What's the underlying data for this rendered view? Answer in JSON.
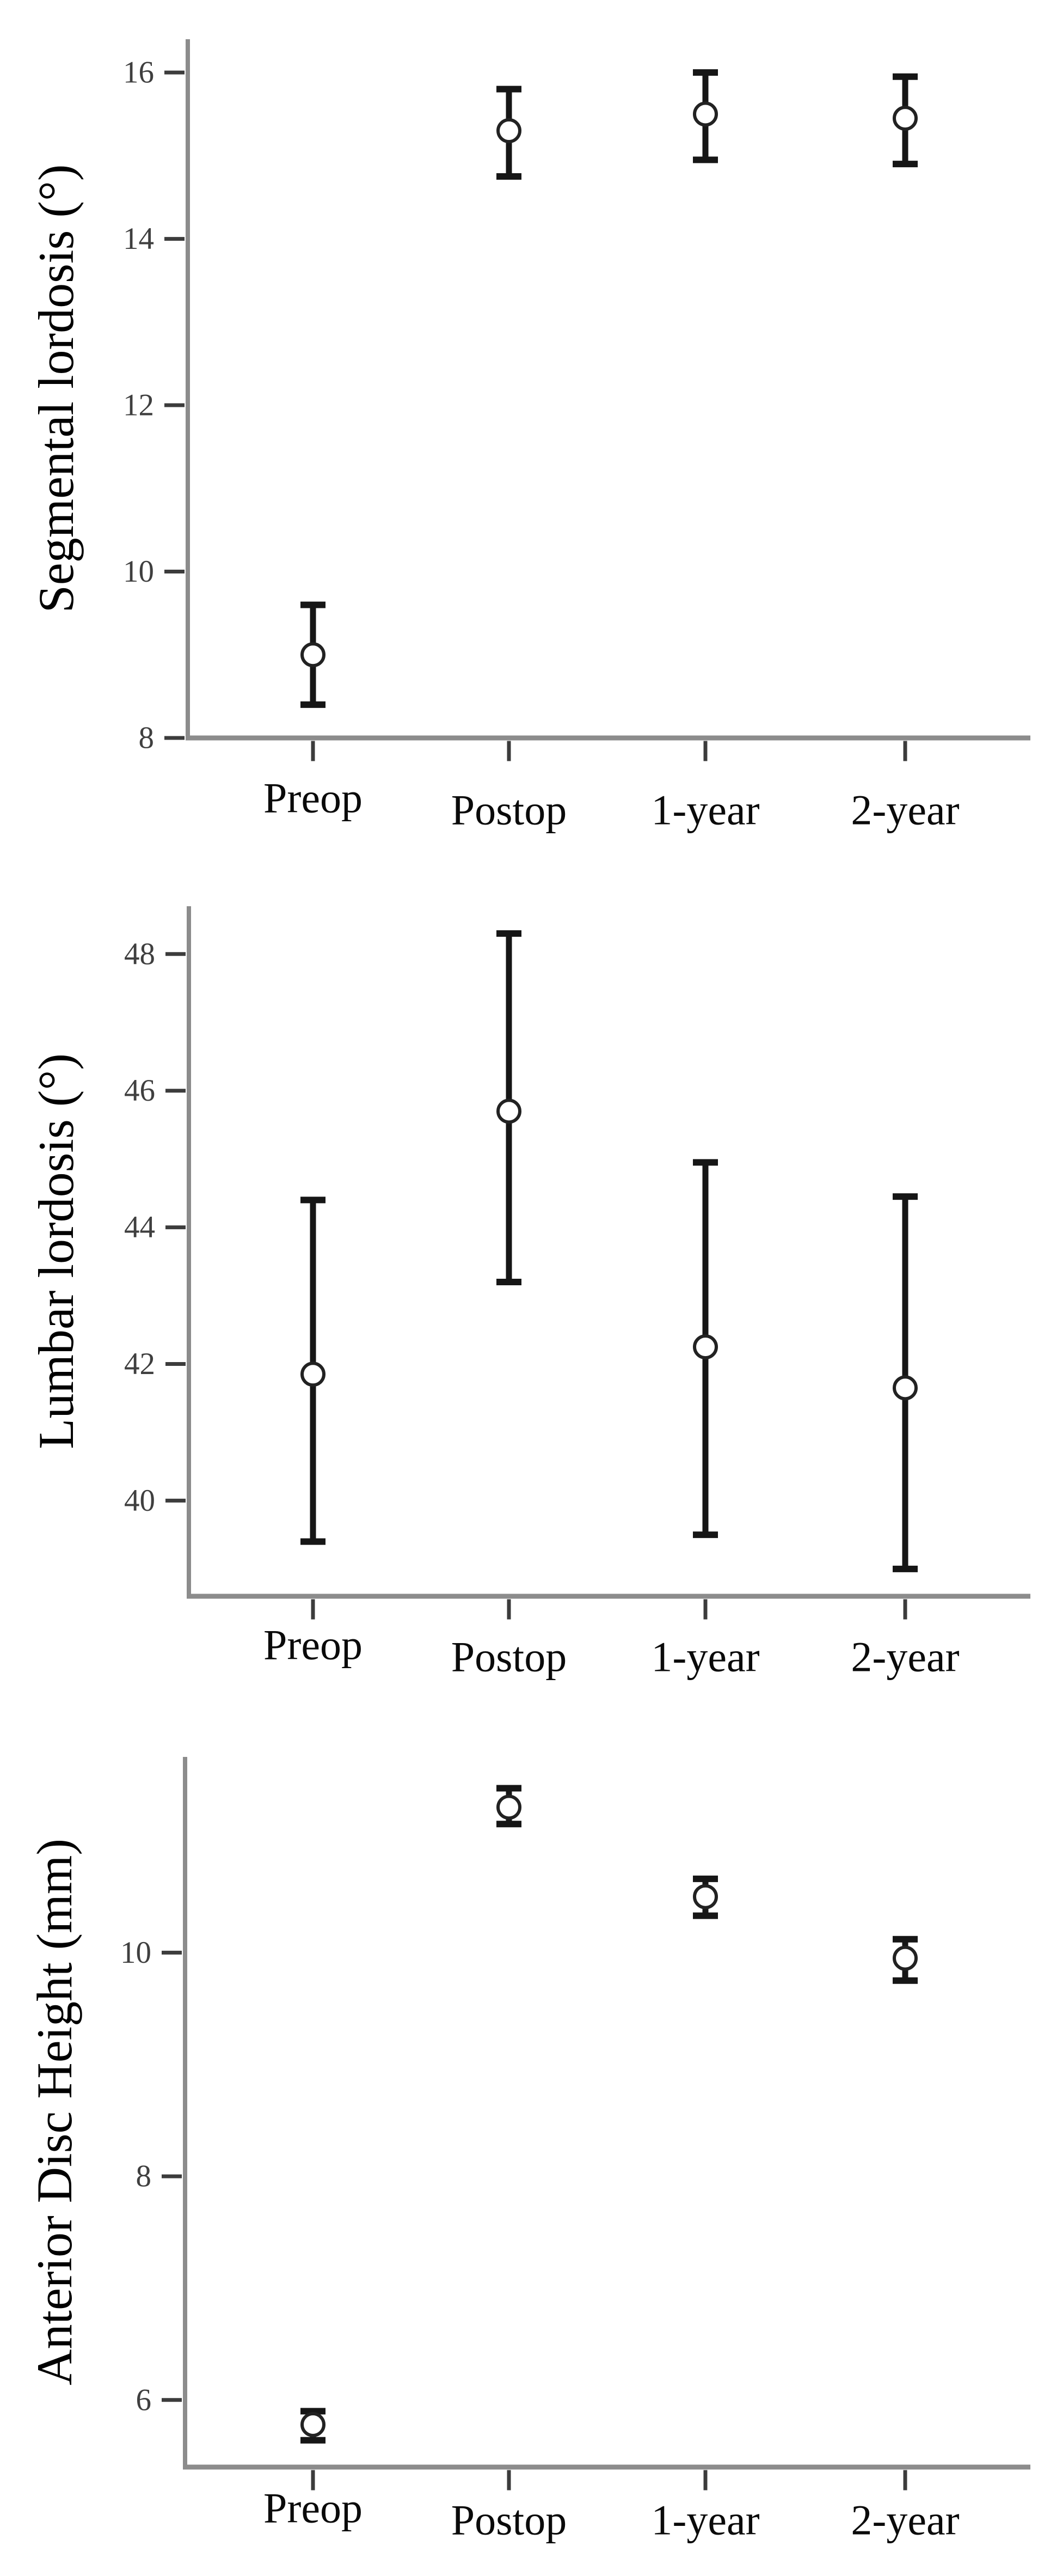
{
  "figure_background": "#ffffff",
  "colors": {
    "axis_line": "#8c8c8c",
    "tick_mark": "#3c3c3c",
    "tick_label": "#3f3f3f",
    "category_label": "#0a0a0a",
    "axis_title": "#000000",
    "error_bar": "#161616",
    "marker_fill": "#ffffff",
    "marker_stroke": "#222222"
  },
  "chart_data": [
    {
      "type": "scatter",
      "title": "",
      "xlabel": "",
      "ylabel": "Segmental lordosis (°)",
      "categories": [
        "Preop",
        "Postop",
        "1-year",
        "2-year"
      ],
      "series": [
        {
          "name": "mean",
          "values": [
            9.0,
            15.3,
            15.5,
            15.45
          ]
        },
        {
          "name": "ci_lower",
          "values": [
            8.4,
            14.75,
            14.95,
            14.9
          ]
        },
        {
          "name": "ci_upper",
          "values": [
            9.6,
            15.8,
            16.0,
            15.95
          ]
        }
      ],
      "yticks": [
        8,
        10,
        12,
        14,
        16
      ],
      "ylim": [
        8,
        16.4
      ],
      "grid": false,
      "legend_position": "none",
      "marker": "open-circle-with-error-bars"
    },
    {
      "type": "scatter",
      "title": "",
      "xlabel": "",
      "ylabel": "Lumbar lordosis (°)",
      "categories": [
        "Preop",
        "Postop",
        "1-year",
        "2-year"
      ],
      "series": [
        {
          "name": "mean",
          "values": [
            41.85,
            45.7,
            42.25,
            41.65
          ]
        },
        {
          "name": "ci_lower",
          "values": [
            39.4,
            43.2,
            39.5,
            39.0
          ]
        },
        {
          "name": "ci_upper",
          "values": [
            44.4,
            48.3,
            44.95,
            44.45
          ]
        }
      ],
      "yticks": [
        40,
        42,
        44,
        46,
        48
      ],
      "ylim": [
        38.6,
        48.7
      ],
      "grid": false,
      "legend_position": "none",
      "marker": "open-circle-with-error-bars"
    },
    {
      "type": "scatter",
      "title": "",
      "xlabel": "",
      "ylabel": "Anterior Disc Height (mm)",
      "categories": [
        "Preop",
        "Postop",
        "1-year",
        "2-year"
      ],
      "series": [
        {
          "name": "mean",
          "values": [
            5.78,
            11.3,
            10.5,
            9.95
          ]
        },
        {
          "name": "ci_lower",
          "values": [
            5.64,
            11.15,
            10.33,
            9.75
          ]
        },
        {
          "name": "ci_upper",
          "values": [
            5.9,
            11.47,
            10.66,
            10.12
          ]
        }
      ],
      "yticks": [
        6,
        8,
        10
      ],
      "ylim": [
        5.4,
        11.75
      ],
      "grid": false,
      "legend_position": "none",
      "marker": "open-circle-with-error-bars"
    }
  ]
}
